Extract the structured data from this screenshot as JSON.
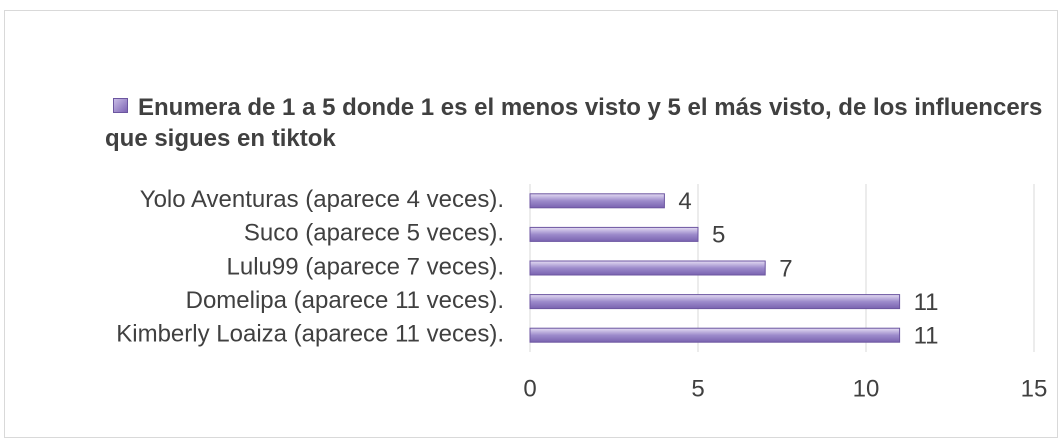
{
  "chart_data": {
    "type": "bar",
    "orientation": "horizontal",
    "title": "Enumera de 1 a 5 donde 1 es el menos visto y 5 el más visto, de los influencers que sigues en tiktok",
    "categories": [
      "Yolo Aventuras (aparece 4 veces).",
      "Suco (aparece 5 veces).",
      "Lulu99 (aparece 7 veces).",
      "Domelipa (aparece 11 veces).",
      "Kimberly Loaiza (aparece 11 veces)."
    ],
    "values": [
      4,
      5,
      7,
      11,
      11
    ],
    "color": "#9d8bcb",
    "xlim": [
      0,
      15
    ],
    "xticks": [
      0,
      5,
      10,
      15
    ],
    "grid": true
  }
}
